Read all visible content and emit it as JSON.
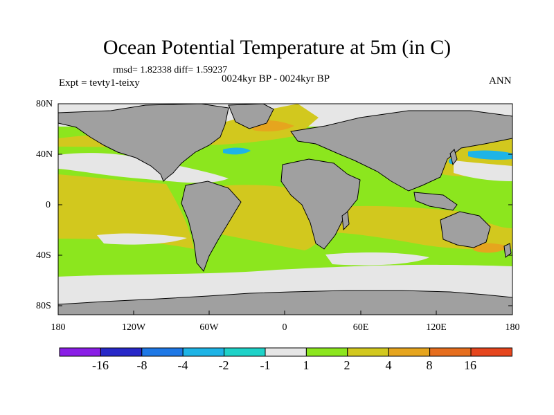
{
  "title": "Ocean Potential Temperature at 5m (in C)",
  "stats": "rmsd= 1.82338 diff= 1.59237",
  "experiment": "Expt = tevty1-teixy",
  "period": "0024kyr BP - 0024kyr BP",
  "season": "ANN",
  "lat_labels": [
    "80N",
    "40N",
    "0",
    "40S",
    "80S"
  ],
  "lon_labels": [
    "180",
    "120W",
    "60W",
    "0",
    "60E",
    "120E",
    "180"
  ],
  "colorbar": {
    "colors": [
      "#8a1ee6",
      "#2828c8",
      "#1e78e6",
      "#1eb4e6",
      "#1ed2c8",
      "#e6e6e6",
      "#8ce61e",
      "#d2c81e",
      "#e6a51e",
      "#e66e1e",
      "#e6461e"
    ],
    "labels": [
      "-16",
      "-8",
      "-4",
      "-2",
      "-1",
      "1",
      "2",
      "4",
      "8",
      "16"
    ]
  },
  "palette": {
    "land": "#a0a0a0",
    "zero_band": "#e6e6e6",
    "band_1_2": "#8ce61e",
    "band_2_4": "#d2c81e",
    "band_4_8": "#e6a51e",
    "band_neg": "#1eb4e6"
  }
}
